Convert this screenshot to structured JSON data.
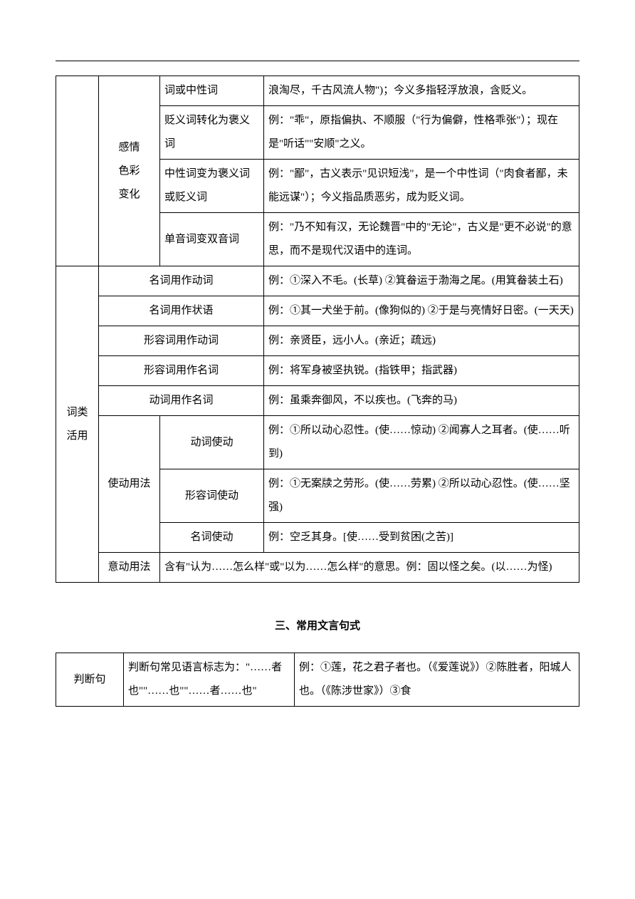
{
  "table1": {
    "rows": [
      {
        "c2": "感情\n色彩\n变化",
        "c3": "词或中性词",
        "c4": "浪淘尽，千古风流人物\")；今义多指轻浮放浪，含贬义。"
      },
      {
        "c3": "贬义词转化为褒义词",
        "c4": "例：\"乖\"，原指偏执、不顺服（\"行为偏僻，性格乖张\"）；现在是\"听话\"\"安顺\"之义。"
      },
      {
        "c3": "中性词变为褒义词或贬义词",
        "c4": "例：\"鄙\"，古义表示\"见识短浅\"，是一个中性词（\"肉食者鄙，未能远谋\"）；今义指品质恶劣，成为贬义词。"
      },
      {
        "c3": "单音词变双音词",
        "c4": "例：\"乃不知有汉，无论魏晋\"中的\"无论\"，古义是\"更不必说\"的意思，而不是现代汉语中的连词。"
      },
      {
        "c1": "词类\n活用",
        "c2wide": "名词用作动词",
        "c4": "例：①深入不毛。(长草)  ②箕畚运于渤海之尾。(用箕畚装土石)"
      },
      {
        "c2wide": "名词用作状语",
        "c4": "例：①其一犬坐于前。(像狗似的)  ②于是与亮情好日密。(一天天)"
      },
      {
        "c2wide": "形容词用作动词",
        "c4": "例：亲贤臣，远小人。(亲近；疏远)"
      },
      {
        "c2wide": "形容词用作名词",
        "c4": "例：将军身被坚执锐。(指铁甲；指武器)"
      },
      {
        "c2wide": "动词用作名词",
        "c4": "例：虽乘奔御风，不以疾也。(飞奔的马)"
      },
      {
        "c2b": "使动用法",
        "c3b": "动词使动",
        "c4": "例：①所以动心忍性。(使……惊动)  ②闻寡人之耳者。(使……听到)"
      },
      {
        "c3b": "形容词使动",
        "c4": "例：①无案牍之劳形。(使……劳累)  ②所以动心忍性。(使……坚强)"
      },
      {
        "c3b": "名词使动",
        "c4": "例：空乏其身。[使……受到贫困(之苦)]"
      },
      {
        "c2b": "意动用法",
        "c4wide": "含有\"认为……怎么样\"或\"以为……怎么样\"的意思。例：固以怪之矣。(以……为怪)"
      }
    ]
  },
  "section_title": "三、常用文言句式",
  "table2": {
    "rows": [
      {
        "c1": "判断句",
        "c2": "判断句常见语言标志为：\"……者也\"\"……也\"\"……者……也\"",
        "c3": "例：①莲，花之君子者也。（《爱莲说》）②陈胜者，阳城人也。（《陈涉世家》）③食"
      }
    ]
  }
}
